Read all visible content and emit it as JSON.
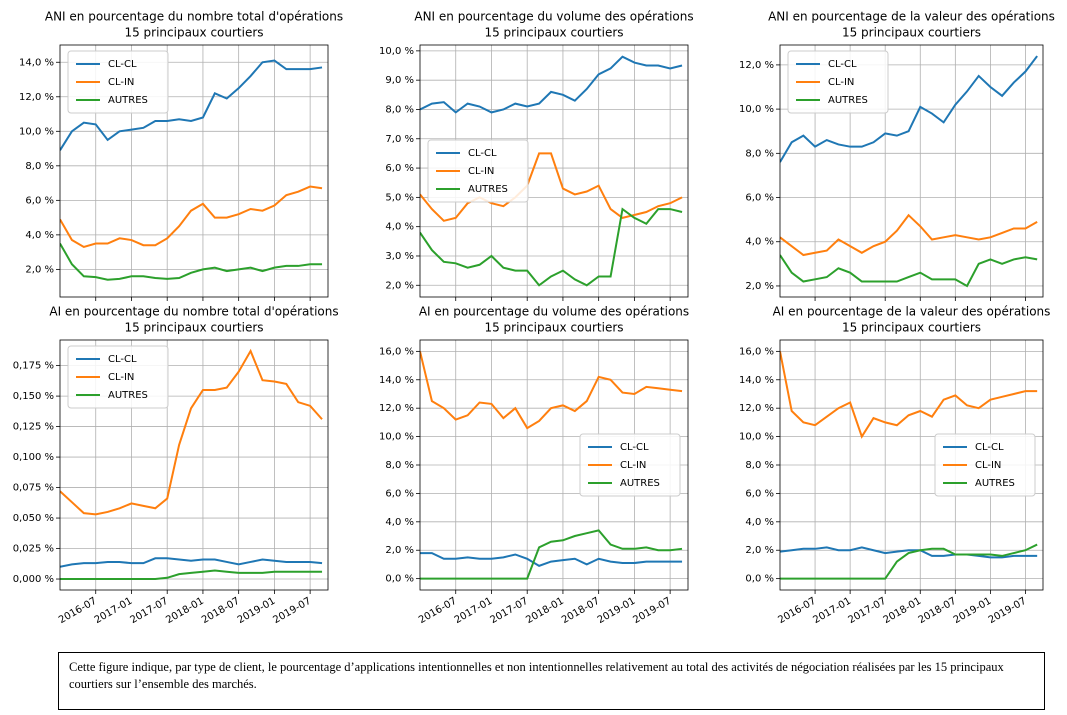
{
  "chart_data": [
    {
      "type": "line",
      "title": "ANI en pourcentage du nombre total d'opérations",
      "subtitle": "15 principaux courtiers",
      "x": [
        "2016-01",
        "2016-03",
        "2016-05",
        "2016-07",
        "2016-09",
        "2016-11",
        "2017-01",
        "2017-03",
        "2017-05",
        "2017-07",
        "2017-09",
        "2017-11",
        "2018-01",
        "2018-03",
        "2018-05",
        "2018-07",
        "2018-09",
        "2018-11",
        "2019-01",
        "2019-03",
        "2019-05",
        "2019-07",
        "2019-09"
      ],
      "xlim": [
        "2016-01",
        "2019-10"
      ],
      "xticks": [
        "2016-07",
        "2017-01",
        "2017-07",
        "2018-01",
        "2018-07",
        "2019-01",
        "2019-07"
      ],
      "ylim": [
        0.4,
        15.0
      ],
      "yticks": [
        {
          "value": 2,
          "label": "2,0 %"
        },
        {
          "value": 4,
          "label": "4,0 %"
        },
        {
          "value": 6,
          "label": "6,0 %"
        },
        {
          "value": 8,
          "label": "8,0 %"
        },
        {
          "value": 10,
          "label": "10,0 %"
        },
        {
          "value": 12,
          "label": "12,0 %"
        },
        {
          "value": 14,
          "label": "14,0 %"
        }
      ],
      "grid": true,
      "legend": "upper left",
      "series": [
        {
          "name": "CL-CL",
          "color": "#1f77b4",
          "values": [
            8.9,
            10.0,
            10.5,
            10.4,
            9.5,
            10.0,
            10.1,
            10.2,
            10.6,
            10.6,
            10.7,
            10.6,
            10.8,
            12.2,
            11.9,
            12.5,
            13.2,
            14.0,
            14.1,
            13.6,
            13.6,
            13.6,
            13.7
          ]
        },
        {
          "name": "CL-IN",
          "color": "#ff7f0e",
          "values": [
            4.9,
            3.7,
            3.3,
            3.5,
            3.5,
            3.8,
            3.7,
            3.4,
            3.4,
            3.8,
            4.5,
            5.4,
            5.8,
            5.0,
            5.0,
            5.2,
            5.5,
            5.4,
            5.7,
            6.3,
            6.5,
            6.8,
            6.7
          ]
        },
        {
          "name": "AUTRES",
          "color": "#2ca02c",
          "values": [
            3.5,
            2.3,
            1.6,
            1.55,
            1.4,
            1.45,
            1.6,
            1.6,
            1.5,
            1.45,
            1.5,
            1.8,
            2.0,
            2.1,
            1.9,
            2.0,
            2.1,
            1.9,
            2.1,
            2.2,
            2.2,
            2.3,
            2.3
          ]
        }
      ]
    },
    {
      "type": "line",
      "title": "ANI en pourcentage du volume des opérations",
      "subtitle": "15 principaux courtiers",
      "x": [
        "2016-01",
        "2016-03",
        "2016-05",
        "2016-07",
        "2016-09",
        "2016-11",
        "2017-01",
        "2017-03",
        "2017-05",
        "2017-07",
        "2017-09",
        "2017-11",
        "2018-01",
        "2018-03",
        "2018-05",
        "2018-07",
        "2018-09",
        "2018-11",
        "2019-01",
        "2019-03",
        "2019-05",
        "2019-07",
        "2019-09"
      ],
      "xlim": [
        "2016-01",
        "2019-10"
      ],
      "xticks": [
        "2016-07",
        "2017-01",
        "2017-07",
        "2018-01",
        "2018-07",
        "2019-01",
        "2019-07"
      ],
      "ylim": [
        1.6,
        10.2
      ],
      "yticks": [
        {
          "value": 2,
          "label": "2,0 %"
        },
        {
          "value": 3,
          "label": "3,0 %"
        },
        {
          "value": 4,
          "label": "4,0 %"
        },
        {
          "value": 5,
          "label": "5,0 %"
        },
        {
          "value": 6,
          "label": "6,0 %"
        },
        {
          "value": 7,
          "label": "7,0 %"
        },
        {
          "value": 8,
          "label": "8,0 %"
        },
        {
          "value": 9,
          "label": "9,0 %"
        },
        {
          "value": 10,
          "label": "10,0 %"
        }
      ],
      "grid": true,
      "legend": "center left",
      "series": [
        {
          "name": "CL-CL",
          "color": "#1f77b4",
          "values": [
            8.0,
            8.2,
            8.25,
            7.9,
            8.2,
            8.1,
            7.9,
            8.0,
            8.2,
            8.1,
            8.2,
            8.6,
            8.5,
            8.3,
            8.7,
            9.2,
            9.4,
            9.8,
            9.6,
            9.5,
            9.5,
            9.4,
            9.5
          ]
        },
        {
          "name": "CL-IN",
          "color": "#ff7f0e",
          "values": [
            5.1,
            4.6,
            4.2,
            4.3,
            4.8,
            5.0,
            4.8,
            4.7,
            5.0,
            5.4,
            6.5,
            6.5,
            5.3,
            5.1,
            5.2,
            5.4,
            4.6,
            4.3,
            4.4,
            4.5,
            4.7,
            4.8,
            5.0
          ]
        },
        {
          "name": "AUTRES",
          "color": "#2ca02c",
          "values": [
            3.8,
            3.2,
            2.8,
            2.75,
            2.6,
            2.7,
            3.0,
            2.6,
            2.5,
            2.5,
            2.0,
            2.3,
            2.5,
            2.2,
            2.0,
            2.3,
            2.3,
            4.6,
            4.3,
            4.1,
            4.6,
            4.6,
            4.5
          ]
        }
      ]
    },
    {
      "type": "line",
      "title": "ANI en pourcentage de la valeur des opérations",
      "subtitle": "15 principaux courtiers",
      "x": [
        "2016-01",
        "2016-03",
        "2016-05",
        "2016-07",
        "2016-09",
        "2016-11",
        "2017-01",
        "2017-03",
        "2017-05",
        "2017-07",
        "2017-09",
        "2017-11",
        "2018-01",
        "2018-03",
        "2018-05",
        "2018-07",
        "2018-09",
        "2018-11",
        "2019-01",
        "2019-03",
        "2019-05",
        "2019-07",
        "2019-09"
      ],
      "xlim": [
        "2016-01",
        "2019-10"
      ],
      "xticks": [
        "2016-07",
        "2017-01",
        "2017-07",
        "2018-01",
        "2018-07",
        "2019-01",
        "2019-07"
      ],
      "ylim": [
        1.5,
        12.9
      ],
      "yticks": [
        {
          "value": 2,
          "label": "2,0 %"
        },
        {
          "value": 4,
          "label": "4,0 %"
        },
        {
          "value": 6,
          "label": "6,0 %"
        },
        {
          "value": 8,
          "label": "8,0 %"
        },
        {
          "value": 10,
          "label": "10,0 %"
        },
        {
          "value": 12,
          "label": "12,0 %"
        }
      ],
      "grid": true,
      "legend": "upper left",
      "series": [
        {
          "name": "CL-CL",
          "color": "#1f77b4",
          "values": [
            7.6,
            8.5,
            8.8,
            8.3,
            8.6,
            8.4,
            8.3,
            8.3,
            8.5,
            8.9,
            8.8,
            9.0,
            10.1,
            9.8,
            9.4,
            10.2,
            10.8,
            11.5,
            11.0,
            10.6,
            11.2,
            11.7,
            12.4
          ]
        },
        {
          "name": "CL-IN",
          "color": "#ff7f0e",
          "values": [
            4.2,
            3.8,
            3.4,
            3.5,
            3.6,
            4.1,
            3.8,
            3.5,
            3.8,
            4.0,
            4.5,
            5.2,
            4.7,
            4.1,
            4.2,
            4.3,
            4.2,
            4.1,
            4.2,
            4.4,
            4.6,
            4.6,
            4.9
          ]
        },
        {
          "name": "AUTRES",
          "color": "#2ca02c",
          "values": [
            3.4,
            2.6,
            2.2,
            2.3,
            2.4,
            2.8,
            2.6,
            2.2,
            2.2,
            2.2,
            2.2,
            2.4,
            2.6,
            2.3,
            2.3,
            2.3,
            2.0,
            3.0,
            3.2,
            3.0,
            3.2,
            3.3,
            3.2
          ]
        }
      ]
    },
    {
      "type": "line",
      "title": "AI en pourcentage du nombre total d'opérations",
      "subtitle": "15 principaux courtiers",
      "x": [
        "2016-01",
        "2016-03",
        "2016-05",
        "2016-07",
        "2016-09",
        "2016-11",
        "2017-01",
        "2017-03",
        "2017-05",
        "2017-07",
        "2017-09",
        "2017-11",
        "2018-01",
        "2018-03",
        "2018-05",
        "2018-07",
        "2018-09",
        "2018-11",
        "2019-01",
        "2019-03",
        "2019-05",
        "2019-07",
        "2019-09"
      ],
      "xlim": [
        "2016-01",
        "2019-10"
      ],
      "xticks": [
        "2016-07",
        "2017-01",
        "2017-07",
        "2018-01",
        "2018-07",
        "2019-01",
        "2019-07"
      ],
      "ylim": [
        -0.009,
        0.196
      ],
      "yticks": [
        {
          "value": 0,
          "label": "0,000 %"
        },
        {
          "value": 0.025,
          "label": "0,025 %"
        },
        {
          "value": 0.05,
          "label": "0,050 %"
        },
        {
          "value": 0.075,
          "label": "0,075 %"
        },
        {
          "value": 0.1,
          "label": "0,100 %"
        },
        {
          "value": 0.125,
          "label": "0,125 %"
        },
        {
          "value": 0.15,
          "label": "0,150 %"
        },
        {
          "value": 0.175,
          "label": "0,175 %"
        }
      ],
      "grid": true,
      "legend": "upper left",
      "series": [
        {
          "name": "CL-CL",
          "color": "#1f77b4",
          "values": [
            0.01,
            0.012,
            0.013,
            0.013,
            0.014,
            0.014,
            0.013,
            0.013,
            0.017,
            0.017,
            0.016,
            0.015,
            0.016,
            0.016,
            0.014,
            0.012,
            0.014,
            0.016,
            0.015,
            0.014,
            0.014,
            0.014,
            0.013
          ]
        },
        {
          "name": "CL-IN",
          "color": "#ff7f0e",
          "values": [
            0.072,
            0.063,
            0.054,
            0.053,
            0.055,
            0.058,
            0.062,
            0.06,
            0.058,
            0.066,
            0.11,
            0.14,
            0.155,
            0.155,
            0.157,
            0.17,
            0.187,
            0.163,
            0.162,
            0.16,
            0.145,
            0.142,
            0.131
          ]
        },
        {
          "name": "AUTRES",
          "color": "#2ca02c",
          "values": [
            0,
            0,
            0,
            0,
            0,
            0,
            0,
            0,
            0,
            0.001,
            0.004,
            0.005,
            0.006,
            0.007,
            0.006,
            0.005,
            0.005,
            0.005,
            0.006,
            0.006,
            0.006,
            0.006,
            0.006
          ]
        }
      ]
    },
    {
      "type": "line",
      "title": "AI en pourcentage du volume des opérations",
      "subtitle": "15 principaux courtiers",
      "x": [
        "2016-01",
        "2016-03",
        "2016-05",
        "2016-07",
        "2016-09",
        "2016-11",
        "2017-01",
        "2017-03",
        "2017-05",
        "2017-07",
        "2017-09",
        "2017-11",
        "2018-01",
        "2018-03",
        "2018-05",
        "2018-07",
        "2018-09",
        "2018-11",
        "2019-01",
        "2019-03",
        "2019-05",
        "2019-07",
        "2019-09"
      ],
      "xlim": [
        "2016-01",
        "2019-10"
      ],
      "xticks": [
        "2016-07",
        "2017-01",
        "2017-07",
        "2018-01",
        "2018-07",
        "2019-01",
        "2019-07"
      ],
      "ylim": [
        -0.8,
        16.8
      ],
      "yticks": [
        {
          "value": 0,
          "label": "0,0 %"
        },
        {
          "value": 2,
          "label": "2,0 %"
        },
        {
          "value": 4,
          "label": "4,0 %"
        },
        {
          "value": 6,
          "label": "6,0 %"
        },
        {
          "value": 8,
          "label": "8,0 %"
        },
        {
          "value": 10,
          "label": "10,0 %"
        },
        {
          "value": 12,
          "label": "12,0 %"
        },
        {
          "value": 14,
          "label": "14,0 %"
        },
        {
          "value": 16,
          "label": "16,0 %"
        }
      ],
      "grid": true,
      "legend": "center right",
      "series": [
        {
          "name": "CL-CL",
          "color": "#1f77b4",
          "values": [
            1.8,
            1.8,
            1.4,
            1.4,
            1.5,
            1.4,
            1.4,
            1.5,
            1.7,
            1.4,
            0.9,
            1.2,
            1.3,
            1.4,
            1.0,
            1.4,
            1.2,
            1.1,
            1.1,
            1.2,
            1.2,
            1.2,
            1.2
          ]
        },
        {
          "name": "CL-IN",
          "color": "#ff7f0e",
          "values": [
            16.0,
            12.5,
            12.0,
            11.2,
            11.5,
            12.4,
            12.3,
            11.3,
            12.0,
            10.6,
            11.1,
            12.0,
            12.2,
            11.8,
            12.5,
            14.2,
            14.0,
            13.1,
            13.0,
            13.5,
            13.4,
            13.3,
            13.2
          ]
        },
        {
          "name": "AUTRES",
          "color": "#2ca02c",
          "values": [
            0,
            0,
            0,
            0,
            0,
            0,
            0,
            0,
            0,
            0,
            2.2,
            2.6,
            2.7,
            3.0,
            3.2,
            3.4,
            2.4,
            2.1,
            2.1,
            2.2,
            2.0,
            2.0,
            2.1
          ]
        }
      ]
    },
    {
      "type": "line",
      "title": "AI en pourcentage de la valeur des opérations",
      "subtitle": "15 principaux courtiers",
      "x": [
        "2016-01",
        "2016-03",
        "2016-05",
        "2016-07",
        "2016-09",
        "2016-11",
        "2017-01",
        "2017-03",
        "2017-05",
        "2017-07",
        "2017-09",
        "2017-11",
        "2018-01",
        "2018-03",
        "2018-05",
        "2018-07",
        "2018-09",
        "2018-11",
        "2019-01",
        "2019-03",
        "2019-05",
        "2019-07",
        "2019-09"
      ],
      "xlim": [
        "2016-01",
        "2019-10"
      ],
      "xticks": [
        "2016-07",
        "2017-01",
        "2017-07",
        "2018-01",
        "2018-07",
        "2019-01",
        "2019-07"
      ],
      "ylim": [
        -0.8,
        16.8
      ],
      "yticks": [
        {
          "value": 0,
          "label": "0,0 %"
        },
        {
          "value": 2,
          "label": "2,0 %"
        },
        {
          "value": 4,
          "label": "4,0 %"
        },
        {
          "value": 6,
          "label": "6,0 %"
        },
        {
          "value": 8,
          "label": "8,0 %"
        },
        {
          "value": 10,
          "label": "10,0 %"
        },
        {
          "value": 12,
          "label": "12,0 %"
        },
        {
          "value": 14,
          "label": "14,0 %"
        },
        {
          "value": 16,
          "label": "16,0 %"
        }
      ],
      "grid": true,
      "legend": "center right",
      "series": [
        {
          "name": "CL-CL",
          "color": "#1f77b4",
          "values": [
            1.9,
            2.0,
            2.1,
            2.1,
            2.2,
            2.0,
            2.0,
            2.2,
            2.0,
            1.8,
            1.9,
            2.0,
            2.0,
            1.6,
            1.6,
            1.7,
            1.7,
            1.6,
            1.5,
            1.5,
            1.6,
            1.6,
            1.6
          ]
        },
        {
          "name": "CL-IN",
          "color": "#ff7f0e",
          "values": [
            16.0,
            11.8,
            11.0,
            10.8,
            11.4,
            12.0,
            12.4,
            10.0,
            11.3,
            11.0,
            10.8,
            11.5,
            11.8,
            11.4,
            12.6,
            12.9,
            12.2,
            12.0,
            12.6,
            12.8,
            13.0,
            13.2,
            13.2
          ]
        },
        {
          "name": "AUTRES",
          "color": "#2ca02c",
          "values": [
            0,
            0,
            0,
            0,
            0,
            0,
            0,
            0,
            0,
            0,
            1.2,
            1.8,
            2.0,
            2.1,
            2.1,
            1.7,
            1.7,
            1.7,
            1.7,
            1.6,
            1.8,
            2.0,
            2.4
          ]
        }
      ]
    }
  ],
  "caption": "Cette figure indique, par type de client, le pourcentage d’applications intentionnelles et non intentionnelles relativement au total des activités de négociation réalisées par les 15 principaux courtiers sur l’ensemble des marchés."
}
